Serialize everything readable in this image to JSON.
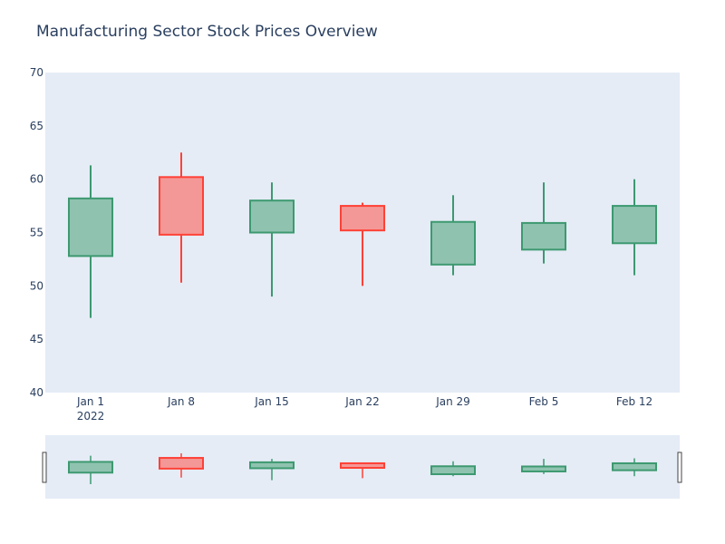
{
  "chart_data": {
    "type": "candlestick",
    "title": "Manufacturing Sector Stock Prices Overview",
    "xlabel": "",
    "ylabel": "",
    "ylim": [
      40,
      70
    ],
    "y_ticks": [
      40,
      45,
      50,
      55,
      60,
      65,
      70
    ],
    "x_ticks": [
      {
        "label": "Jan 1",
        "sublabel": "2022"
      },
      {
        "label": "Jan 8",
        "sublabel": ""
      },
      {
        "label": "Jan 15",
        "sublabel": ""
      },
      {
        "label": "Jan 22",
        "sublabel": ""
      },
      {
        "label": "Jan 29",
        "sublabel": ""
      },
      {
        "label": "Feb 5",
        "sublabel": ""
      },
      {
        "label": "Feb 12",
        "sublabel": ""
      }
    ],
    "candles": [
      {
        "date": "2022-01-01",
        "open": 52.8,
        "high": 61.3,
        "low": 47.0,
        "close": 58.2
      },
      {
        "date": "2022-01-08",
        "open": 60.2,
        "high": 62.5,
        "low": 50.3,
        "close": 54.8
      },
      {
        "date": "2022-01-15",
        "open": 55.0,
        "high": 59.7,
        "low": 49.0,
        "close": 58.0
      },
      {
        "date": "2022-01-22",
        "open": 57.5,
        "high": 57.8,
        "low": 50.0,
        "close": 55.2
      },
      {
        "date": "2022-01-29",
        "open": 52.0,
        "high": 58.5,
        "low": 51.0,
        "close": 56.0
      },
      {
        "date": "2022-02-05",
        "open": 53.4,
        "high": 59.7,
        "low": 52.1,
        "close": 55.9
      },
      {
        "date": "2022-02-12",
        "open": 54.0,
        "high": 60.0,
        "low": 51.0,
        "close": 57.5
      }
    ],
    "grid": false,
    "rangeslider": true,
    "colors": {
      "plot_bg": "#e5ecf6",
      "increasing_line": "#3d9970",
      "increasing_fill": "#8fc3b0",
      "decreasing_line": "#ff4136",
      "decreasing_fill": "#f49897",
      "text": "#2a3f5f",
      "handle": "#444444"
    }
  }
}
